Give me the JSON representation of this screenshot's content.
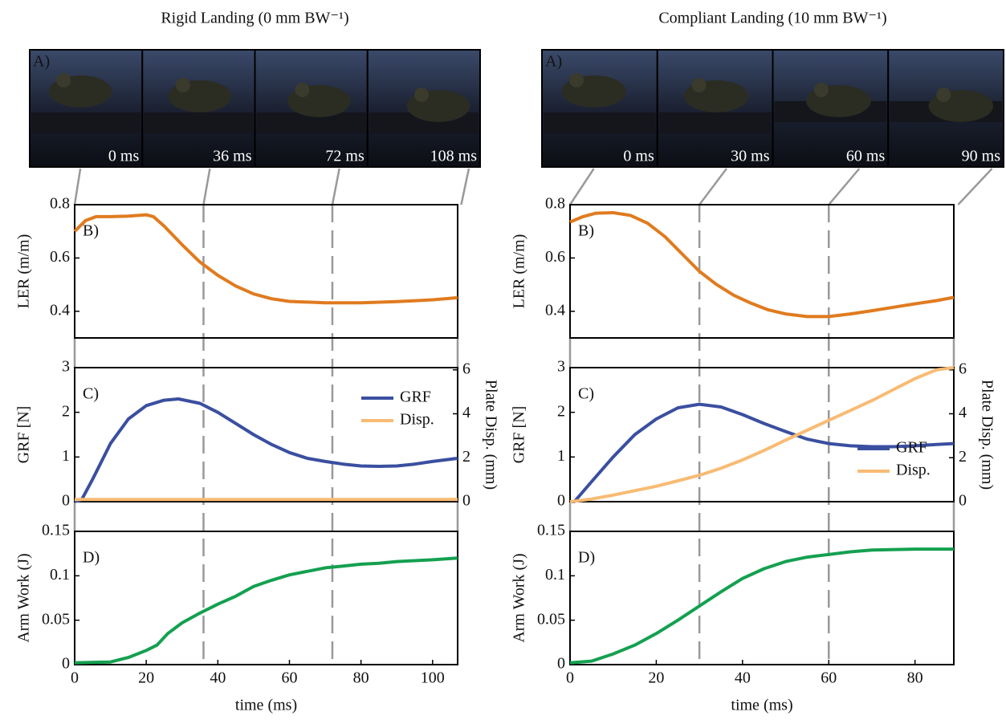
{
  "columns": [
    {
      "title": "Rigid Landing (0 mm BW⁻¹)",
      "photo_label": "A)",
      "frames": [
        {
          "value": 0,
          "label": "0 ms"
        },
        {
          "value": 36,
          "label": "36 ms"
        },
        {
          "value": 72,
          "label": "72 ms"
        },
        {
          "value": 108,
          "label": "108 ms"
        }
      ]
    },
    {
      "title": "Compliant Landing (10 mm BW⁻¹)",
      "photo_label": "A)",
      "frames": [
        {
          "value": 0,
          "label": "0 ms"
        },
        {
          "value": 30,
          "label": "30 ms"
        },
        {
          "value": 60,
          "label": "60 ms"
        },
        {
          "value": 90,
          "label": "90 ms"
        }
      ]
    }
  ],
  "chart_data": [
    {
      "type": "line",
      "panel": "B)",
      "ylabel": "LER (m/m)",
      "xlim": [
        0,
        107
      ],
      "ylim": [
        0.3,
        0.8
      ],
      "yticks": [
        0.4,
        0.6,
        0.8
      ],
      "color": "#e07b1f",
      "x": [
        0,
        3,
        6,
        10,
        15,
        20,
        22,
        25,
        30,
        35,
        40,
        45,
        50,
        55,
        60,
        70,
        80,
        90,
        100,
        107
      ],
      "values": [
        0.7,
        0.74,
        0.755,
        0.755,
        0.757,
        0.762,
        0.755,
        0.72,
        0.65,
        0.585,
        0.535,
        0.495,
        0.465,
        0.447,
        0.437,
        0.432,
        0.432,
        0.436,
        0.443,
        0.451
      ]
    },
    {
      "type": "line",
      "panel": "C)",
      "ylabel": "GRF [N]",
      "y2label": "Plate Disp. (mm)",
      "xlim": [
        0,
        107
      ],
      "ylim": [
        0,
        3
      ],
      "yticks": [
        0,
        1,
        2,
        3
      ],
      "y2lim": [
        0,
        6.1
      ],
      "y2ticks": [
        0,
        2,
        4,
        6
      ],
      "legend": "upper right",
      "x": [
        0,
        2,
        5,
        10,
        15,
        20,
        25,
        29,
        35,
        40,
        45,
        50,
        55,
        60,
        65,
        70,
        75,
        80,
        85,
        90,
        95,
        100,
        107
      ],
      "series": [
        {
          "name": "GRF",
          "color": "#3a4fa0",
          "values": [
            0.0,
            0.05,
            0.5,
            1.3,
            1.85,
            2.15,
            2.27,
            2.3,
            2.2,
            2.0,
            1.75,
            1.5,
            1.28,
            1.1,
            0.97,
            0.9,
            0.84,
            0.8,
            0.79,
            0.8,
            0.84,
            0.9,
            0.97
          ]
        },
        {
          "name": "Disp.",
          "color": "#f8bb74",
          "axis": "y2",
          "values": [
            0.1,
            0.1,
            0.1,
            0.1,
            0.1,
            0.1,
            0.1,
            0.1,
            0.1,
            0.1,
            0.1,
            0.1,
            0.1,
            0.1,
            0.1,
            0.1,
            0.1,
            0.1,
            0.1,
            0.1,
            0.1,
            0.1,
            0.1
          ]
        }
      ]
    },
    {
      "type": "line",
      "panel": "D)",
      "ylabel": "Arm Work (J)",
      "xlabel": "time (ms)",
      "xlim": [
        0,
        107
      ],
      "xticks": [
        0,
        20,
        40,
        60,
        80,
        100
      ],
      "ylim": [
        0,
        0.15
      ],
      "yticks": [
        0,
        0.05,
        0.1,
        0.15
      ],
      "color": "#14a050",
      "x": [
        0,
        10,
        15,
        20,
        23,
        26,
        30,
        35,
        40,
        45,
        50,
        55,
        60,
        65,
        70,
        75,
        80,
        85,
        90,
        95,
        100,
        107
      ],
      "values": [
        0.002,
        0.003,
        0.008,
        0.016,
        0.022,
        0.035,
        0.047,
        0.058,
        0.068,
        0.077,
        0.088,
        0.095,
        0.101,
        0.105,
        0.109,
        0.111,
        0.113,
        0.114,
        0.116,
        0.117,
        0.118,
        0.12
      ]
    },
    {
      "type": "line",
      "panel": "B)",
      "ylabel": "LER (m/m)",
      "xlim": [
        0,
        89
      ],
      "ylim": [
        0.3,
        0.8
      ],
      "yticks": [
        0.4,
        0.6,
        0.8
      ],
      "color": "#e07b1f",
      "x": [
        0,
        3,
        6,
        10,
        14,
        18,
        22,
        26,
        30,
        34,
        38,
        42,
        46,
        50,
        55,
        60,
        65,
        70,
        75,
        80,
        85,
        89
      ],
      "values": [
        0.735,
        0.755,
        0.768,
        0.77,
        0.76,
        0.73,
        0.68,
        0.615,
        0.55,
        0.5,
        0.46,
        0.43,
        0.405,
        0.39,
        0.38,
        0.38,
        0.39,
        0.402,
        0.415,
        0.428,
        0.44,
        0.452
      ]
    },
    {
      "type": "line",
      "panel": "C)",
      "ylabel": "GRF [N]",
      "y2label": "Plate Disp. (mm)",
      "xlim": [
        0,
        89
      ],
      "ylim": [
        0,
        3
      ],
      "yticks": [
        0,
        1,
        2,
        3
      ],
      "y2lim": [
        0,
        6.1
      ],
      "y2ticks": [
        0,
        2,
        4,
        6
      ],
      "legend": "lower right",
      "x": [
        0,
        1,
        5,
        10,
        15,
        20,
        25,
        30,
        35,
        40,
        45,
        50,
        55,
        60,
        65,
        70,
        75,
        80,
        85,
        89
      ],
      "series": [
        {
          "name": "GRF",
          "color": "#3a4fa0",
          "values": [
            0.0,
            0.0,
            0.45,
            1.0,
            1.5,
            1.85,
            2.1,
            2.18,
            2.12,
            1.95,
            1.75,
            1.57,
            1.4,
            1.3,
            1.25,
            1.23,
            1.23,
            1.25,
            1.28,
            1.3
          ]
        },
        {
          "name": "Disp.",
          "color": "#f8bb74",
          "axis": "y2",
          "values": [
            0.0,
            0.02,
            0.12,
            0.3,
            0.5,
            0.7,
            0.95,
            1.2,
            1.52,
            1.9,
            2.33,
            2.8,
            3.25,
            3.7,
            4.15,
            4.6,
            5.1,
            5.6,
            6.0,
            6.1
          ]
        }
      ]
    },
    {
      "type": "line",
      "panel": "D)",
      "ylabel": "Arm Work (J)",
      "xlabel": "time (ms)",
      "xlim": [
        0,
        89
      ],
      "xticks": [
        0,
        20,
        40,
        60,
        80
      ],
      "ylim": [
        0,
        0.15
      ],
      "yticks": [
        0,
        0.05,
        0.1,
        0.15
      ],
      "color": "#14a050",
      "x": [
        0,
        5,
        10,
        15,
        20,
        25,
        30,
        35,
        40,
        45,
        50,
        55,
        60,
        65,
        70,
        80,
        89
      ],
      "values": [
        0.002,
        0.004,
        0.012,
        0.022,
        0.035,
        0.05,
        0.066,
        0.082,
        0.097,
        0.108,
        0.116,
        0.121,
        0.124,
        0.127,
        0.129,
        0.13,
        0.13
      ]
    }
  ]
}
